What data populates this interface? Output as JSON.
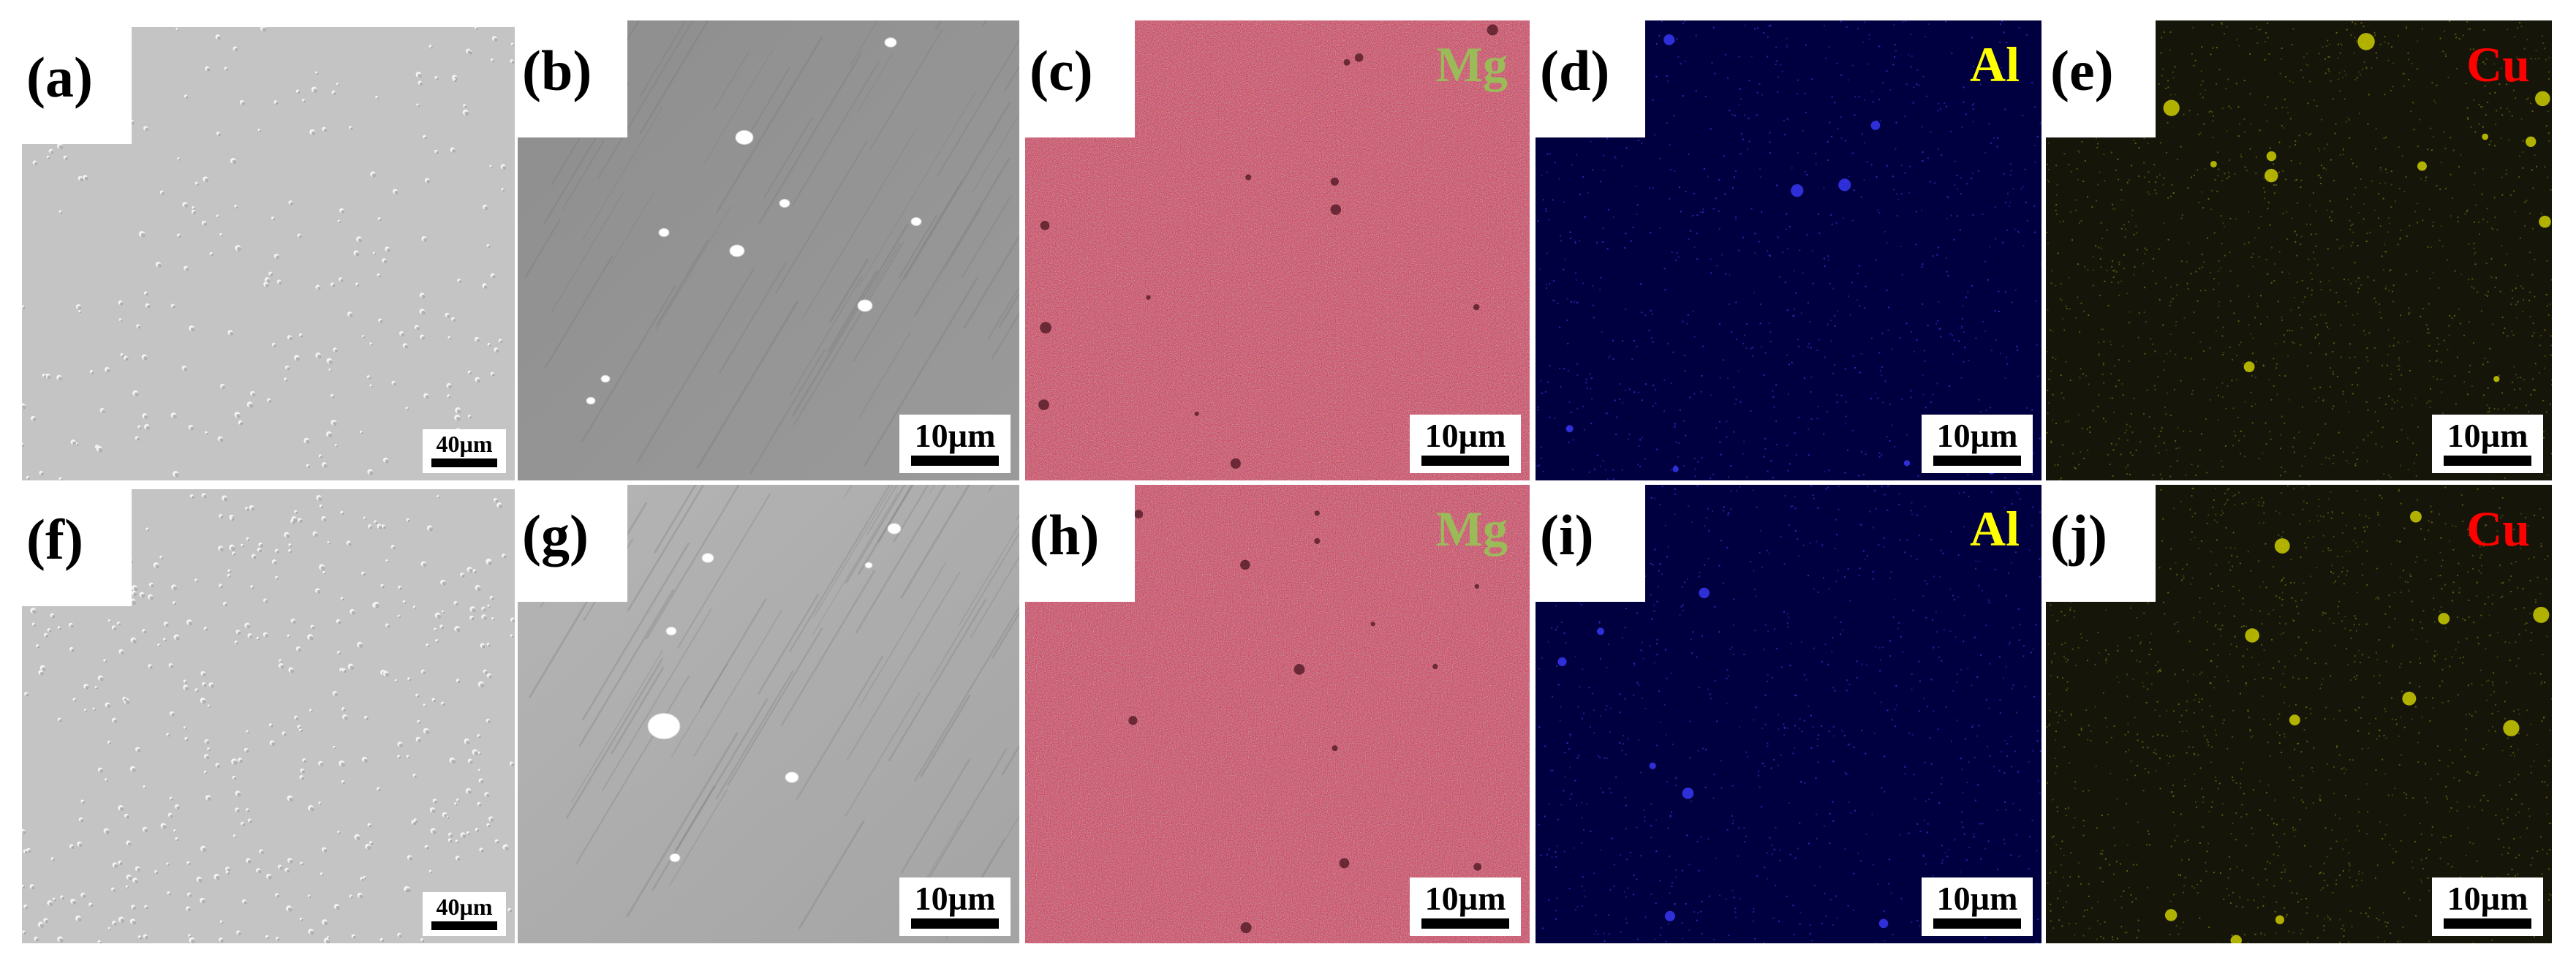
{
  "panels": [
    {
      "letter": "(a)",
      "scale": "40µm",
      "element": "",
      "element_color": "",
      "kind": "optical"
    },
    {
      "letter": "(b)",
      "scale": "10µm",
      "element": "",
      "element_color": "",
      "kind": "sem"
    },
    {
      "letter": "(c)",
      "scale": "10µm",
      "element": "Mg",
      "element_color": "#9bbb59",
      "kind": "mg-map"
    },
    {
      "letter": "(d)",
      "scale": "10µm",
      "element": "Al",
      "element_color": "#ffff00",
      "kind": "al-map"
    },
    {
      "letter": "(e)",
      "scale": "10µm",
      "element": "Cu",
      "element_color": "#ff0000",
      "kind": "cu-map"
    },
    {
      "letter": "(f)",
      "scale": "40µm",
      "element": "",
      "element_color": "",
      "kind": "optical"
    },
    {
      "letter": "(g)",
      "scale": "10µm",
      "element": "",
      "element_color": "",
      "kind": "sem"
    },
    {
      "letter": "(h)",
      "scale": "10µm",
      "element": "Mg",
      "element_color": "#9bbb59",
      "kind": "mg-map"
    },
    {
      "letter": "(i)",
      "scale": "10µm",
      "element": "Al",
      "element_color": "#ffff00",
      "kind": "al-map"
    },
    {
      "letter": "(j)",
      "scale": "10µm",
      "element": "Cu",
      "element_color": "#ff0000",
      "kind": "cu-map"
    }
  ],
  "colors": {
    "optical_background": "#c4c4c4",
    "sem_background_top": "#8c8c8c",
    "sem_background_bottom": "#aaaaaa",
    "mg_map": "#dc143c",
    "al_map": "#000040",
    "cu_map": "#15150a"
  }
}
